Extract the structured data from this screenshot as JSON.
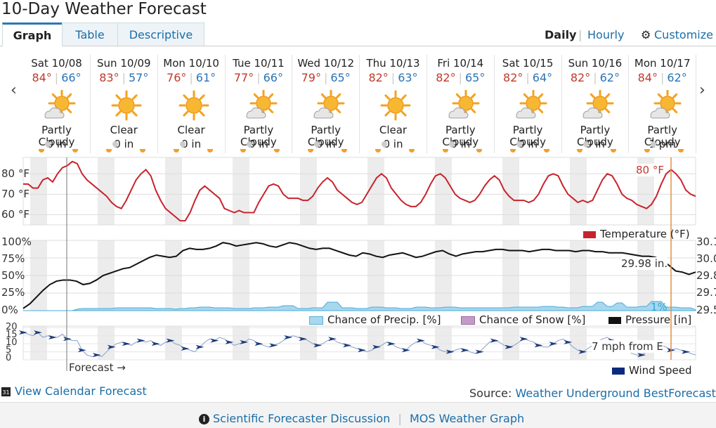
{
  "page": {
    "title": "10-Day Weather Forecast"
  },
  "tabs": [
    {
      "label": "Graph"
    },
    {
      "label": "Table"
    },
    {
      "label": "Descriptive"
    }
  ],
  "view": {
    "daily": "Daily",
    "sep": "|",
    "hourly": "Hourly",
    "customize": "Customize"
  },
  "days": [
    {
      "date": "Sat 10/08",
      "hi": "84°",
      "lo": "66°",
      "cond": "Partly Cloudy",
      "precip": "0 in",
      "icon": "partly-cloudy-icon"
    },
    {
      "date": "Sun 10/09",
      "hi": "83°",
      "lo": "57°",
      "cond": "Clear",
      "precip": "0 in",
      "icon": "sun-icon"
    },
    {
      "date": "Mon 10/10",
      "hi": "76°",
      "lo": "61°",
      "cond": "Clear",
      "precip": "0 in",
      "icon": "sun-icon"
    },
    {
      "date": "Tue 10/11",
      "hi": "77°",
      "lo": "66°",
      "cond": "Partly Cloudy",
      "precip": "0 in",
      "icon": "partly-cloudy-icon"
    },
    {
      "date": "Wed 10/12",
      "hi": "79°",
      "lo": "65°",
      "cond": "Partly Cloudy",
      "precip": "0 in",
      "icon": "partly-cloudy-icon"
    },
    {
      "date": "Thu 10/13",
      "hi": "82°",
      "lo": "63°",
      "cond": "Clear",
      "precip": "0 in",
      "icon": "sun-icon"
    },
    {
      "date": "Fri 10/14",
      "hi": "82°",
      "lo": "65°",
      "cond": "Partly Cloudy",
      "precip": "0 in",
      "icon": "partly-cloudy-icon"
    },
    {
      "date": "Sat 10/15",
      "hi": "82°",
      "lo": "64°",
      "cond": "Partly Cloudy",
      "precip": "0 in",
      "icon": "partly-cloudy-icon"
    },
    {
      "date": "Sun 10/16",
      "hi": "82°",
      "lo": "62°",
      "cond": "Partly Cloudy",
      "precip": "0 in",
      "icon": "partly-cloudy-icon"
    },
    {
      "date": "Mon 10/17",
      "hi": "84°",
      "lo": "62°",
      "cond": "Partly Cloudy",
      "precip": "1 pm",
      "icon": "partly-cloudy-icon"
    }
  ],
  "temp_chart": {
    "ticks": [
      "80 °F",
      "70 °F",
      "60 °F"
    ],
    "tick_values": [
      80,
      70,
      60
    ],
    "range": [
      55,
      88
    ],
    "callout": "80 °F",
    "legend": "Temperature (°F)",
    "color": "#c8232c",
    "values": [
      75,
      75,
      73,
      73,
      77,
      78,
      76,
      80,
      83,
      84,
      86,
      85,
      80,
      77,
      75,
      73,
      71,
      69,
      66,
      64,
      63,
      67,
      72,
      77,
      80,
      82,
      79,
      72,
      67,
      63,
      61,
      59,
      57,
      57,
      61,
      67,
      72,
      74,
      72,
      70,
      68,
      63,
      62,
      61,
      62,
      61,
      61,
      61,
      66,
      70,
      74,
      75,
      74,
      70,
      68,
      68,
      68,
      67,
      67,
      69,
      73,
      76,
      78,
      76,
      72,
      70,
      68,
      66,
      65,
      66,
      70,
      74,
      78,
      80,
      78,
      73,
      70,
      67,
      65,
      64,
      64,
      66,
      70,
      75,
      79,
      80,
      78,
      74,
      70,
      68,
      67,
      66,
      67,
      70,
      74,
      77,
      79,
      77,
      72,
      69,
      67,
      67,
      67,
      66,
      67,
      70,
      75,
      79,
      80,
      79,
      74,
      70,
      68,
      66,
      67,
      66,
      67,
      72,
      77,
      80,
      79,
      75,
      70,
      68,
      67,
      65,
      64,
      63,
      65,
      69,
      75,
      80,
      82,
      80,
      77,
      72,
      70,
      69
    ]
  },
  "precip_chart": {
    "left_ticks": [
      "100%",
      "75%",
      "50%",
      "25%",
      "0%"
    ],
    "right_ticks": [
      "30.1",
      "30.0",
      "29.8",
      "29.7",
      "29.5"
    ],
    "pressure_range": [
      29.5,
      30.12
    ],
    "pressure_callout": "29.98 in.",
    "precip_callout": "1%",
    "legend": {
      "precip": "Chance of Precip. [%]",
      "snow": "Chance of Snow [%]",
      "pressure": "Pressure [in]"
    },
    "colors": {
      "pressure": "#111111",
      "precip": "#a8d8ee",
      "snow": "#c49bc8"
    },
    "pressure": [
      29.52,
      29.56,
      29.62,
      29.68,
      29.73,
      29.76,
      29.77,
      29.77,
      29.76,
      29.73,
      29.74,
      29.77,
      29.81,
      29.83,
      29.85,
      29.87,
      29.88,
      29.91,
      29.94,
      29.97,
      29.99,
      29.98,
      29.97,
      29.98,
      30.03,
      30.05,
      30.04,
      30.04,
      30.05,
      30.07,
      30.1,
      30.09,
      30.07,
      30.08,
      30.09,
      30.1,
      30.09,
      30.07,
      30.06,
      30.08,
      30.1,
      30.09,
      30.07,
      30.05,
      30.04,
      30.05,
      30.05,
      30.03,
      30.01,
      29.99,
      29.98,
      30.01,
      30.0,
      29.98,
      29.97,
      29.99,
      30.0,
      30.01,
      29.99,
      29.97,
      29.98,
      30.0,
      30.02,
      30.03,
      30.0,
      29.98,
      30.0,
      30.01,
      30.02,
      30.02,
      30.03,
      30.04,
      30.04,
      30.03,
      30.03,
      30.03,
      30.02,
      30.03,
      30.04,
      30.04,
      30.03,
      30.03,
      30.03,
      30.02,
      30.03,
      30.03,
      30.02,
      30.02,
      30.01,
      30.01,
      30.01,
      30.0,
      29.99,
      29.98,
      29.98,
      29.97,
      29.94,
      29.9,
      29.85,
      29.84,
      29.82,
      29.84
    ],
    "precip": [
      0,
      0,
      0,
      0,
      0,
      0,
      0,
      0,
      0,
      0,
      0,
      2,
      3,
      3,
      3,
      3,
      3,
      3,
      3,
      4,
      4,
      4,
      4,
      4,
      4,
      4,
      4,
      3,
      3,
      3,
      3,
      2,
      3,
      3,
      4,
      4,
      5,
      5,
      5,
      4,
      4,
      4,
      4,
      3,
      3,
      3,
      3,
      4,
      4,
      4,
      5,
      5,
      5,
      7,
      7,
      7,
      3,
      3,
      3,
      4,
      4,
      4,
      12,
      12,
      12,
      4,
      4,
      4,
      3,
      3,
      3,
      5,
      5,
      5,
      4,
      4,
      4,
      3,
      3,
      3,
      5,
      5,
      5,
      4,
      4,
      4,
      5,
      5,
      5,
      4,
      4,
      4,
      4,
      4,
      4,
      4,
      4,
      4,
      4,
      4,
      5,
      5,
      5,
      5,
      5,
      5,
      6,
      6,
      6,
      5,
      5,
      4,
      4,
      4,
      6,
      6,
      6,
      12,
      12,
      6,
      6,
      11,
      11,
      5,
      5,
      5,
      6,
      6,
      13,
      13,
      13,
      5,
      5,
      5,
      4,
      4,
      4,
      1
    ]
  },
  "wind_chart": {
    "ticks": [
      "20",
      "15",
      "10",
      "5",
      "0"
    ],
    "tick_values": [
      20,
      15,
      10,
      5,
      0
    ],
    "range": [
      0,
      21
    ],
    "callout": "7 mph from E",
    "legend": "Wind Speed",
    "forecast_label": "Forecast →",
    "color": "#1a3a7a",
    "values": [
      17,
      16,
      15,
      17,
      14,
      15,
      14,
      14,
      16,
      13,
      12,
      12,
      6,
      3,
      2,
      3,
      2,
      5,
      8,
      10,
      11,
      10,
      9,
      11,
      12,
      11,
      12,
      10,
      9,
      11,
      12,
      10,
      9,
      7,
      6,
      5,
      8,
      11,
      13,
      12,
      14,
      13,
      11,
      9,
      10,
      11,
      13,
      12,
      10,
      9,
      8,
      9,
      10,
      12,
      14,
      15,
      14,
      13,
      12,
      10,
      9,
      10,
      12,
      13,
      11,
      10,
      9,
      8,
      7,
      6,
      5,
      6,
      8,
      9,
      11,
      10,
      8,
      7,
      6,
      9,
      11,
      12,
      10,
      9,
      8,
      6,
      5,
      5,
      6,
      7,
      6,
      5,
      4,
      5,
      8,
      11,
      12,
      11,
      9,
      8,
      9,
      11,
      13,
      12,
      11,
      9,
      8,
      8,
      10,
      12,
      13,
      11,
      8,
      6,
      5,
      7,
      9,
      11,
      13,
      14,
      12,
      9,
      7,
      6,
      4,
      3,
      3,
      5,
      7,
      8,
      9,
      8,
      6,
      7,
      6,
      5,
      4,
      3
    ]
  },
  "calendar_link": "View Calendar Forecast",
  "source": {
    "label": "Source:",
    "link": "Weather Underground BestForecast"
  },
  "footer": {
    "discussion": "Scientific Forecaster Discussion",
    "sep": "|",
    "mos": "MOS Weather Graph"
  }
}
